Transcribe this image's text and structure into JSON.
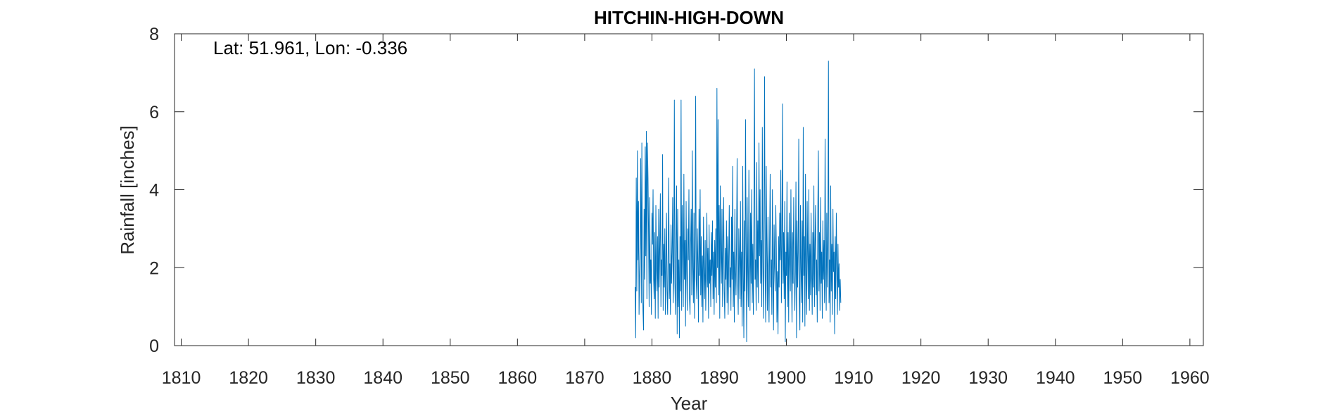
{
  "chart_data": {
    "type": "line",
    "title": "HITCHIN-HIGH-DOWN",
    "xlabel": "Year",
    "ylabel": "Rainfall [inches]",
    "annotation": "Lat: 51.961, Lon: -0.336",
    "xlim": [
      1809,
      1962
    ],
    "ylim": [
      0,
      8
    ],
    "xticks": [
      1810,
      1820,
      1830,
      1840,
      1850,
      1860,
      1870,
      1880,
      1890,
      1900,
      1910,
      1920,
      1930,
      1940,
      1950,
      1960
    ],
    "yticks": [
      0,
      2,
      4,
      6,
      8
    ],
    "grid": false,
    "series": [
      {
        "name": "",
        "color": "#0072BD",
        "x_start": 1877.5,
        "x_step": 0.0833333,
        "values": [
          1.5,
          0.2,
          4.3,
          1.4,
          5.0,
          2.2,
          3.7,
          0.8,
          1.9,
          2.6,
          4.8,
          1.1,
          5.2,
          2.0,
          0.9,
          0.4,
          3.5,
          1.7,
          5.1,
          2.3,
          5.5,
          1.2,
          5.2,
          4.3,
          2.8,
          1.0,
          3.8,
          1.6,
          2.2,
          0.8,
          3.4,
          2.6,
          4.0,
          1.7,
          1.2,
          2.9,
          0.7,
          3.6,
          2.0,
          1.4,
          2.8,
          0.7,
          3.5,
          1.5,
          2.6,
          3.9,
          1.0,
          2.2,
          1.8,
          4.9,
          0.9,
          2.6,
          1.5,
          3.0,
          0.8,
          2.2,
          3.4,
          1.4,
          0.8,
          2.5,
          4.3,
          1.2,
          2.1,
          0.8,
          3.1,
          1.6,
          2.4,
          3.8,
          1.1,
          2.0,
          6.3,
          1.6,
          0.8,
          2.8,
          4.1,
          0.3,
          3.5,
          1.0,
          2.2,
          0.2,
          2.8,
          1.4,
          6.3,
          0.9,
          3.6,
          2.4,
          1.0,
          4.4,
          1.7,
          2.7,
          0.5,
          3.7,
          1.9,
          0.9,
          3.0,
          2.2,
          4.0,
          1.2,
          0.8,
          2.6,
          3.5,
          1.3,
          5.0,
          2.0,
          1.1,
          3.4,
          0.7,
          2.4,
          6.4,
          1.7,
          1.2,
          3.0,
          2.1,
          0.6,
          3.5,
          1.8,
          4.0,
          1.3,
          2.8,
          1.0,
          2.3,
          0.6,
          3.3,
          1.9,
          1.2,
          2.7,
          0.9,
          2.0,
          3.4,
          1.5,
          2.5,
          0.7,
          3.1,
          1.6,
          2.2,
          1.0,
          2.9,
          1.8,
          3.2,
          1.2,
          2.4,
          0.8,
          2.7,
          1.5,
          3.0,
          1.1,
          6.6,
          2.0,
          5.8,
          1.3,
          3.6,
          0.7,
          4.1,
          2.3,
          1.6,
          3.5,
          1.0,
          2.6,
          3.8,
          1.4,
          0.7,
          2.5,
          1.7,
          3.2,
          1.1,
          2.8,
          0.8,
          2.2,
          3.6,
          1.5,
          2.0,
          0.9,
          3.3,
          1.7,
          4.6,
          1.0,
          2.4,
          0.6,
          3.5,
          1.9,
          1.3,
          2.7,
          4.8,
          1.6,
          0.8,
          3.0,
          2.2,
          1.2,
          3.7,
          1.0,
          2.4,
          0.5,
          4.6,
          1.8,
          0.2,
          3.2,
          1.4,
          5.8,
          2.6,
          0.1,
          3.8,
          1.9,
          1.0,
          4.5,
          2.3,
          0.9,
          3.4,
          1.6,
          4.0,
          1.1,
          2.6,
          0.8,
          3.5,
          7.1,
          1.7,
          2.2,
          0.9,
          4.7,
          1.5,
          3.2,
          1.1,
          5.2,
          2.3,
          4.0,
          1.6,
          2.7,
          1.0,
          5.6,
          2.2,
          0.7,
          3.3,
          6.9,
          1.8,
          0.6,
          4.6,
          2.4,
          0.9,
          3.3,
          1.6,
          0.6,
          2.7,
          4.4,
          1.5,
          2.2,
          0.8,
          4.0,
          1.7,
          0.4,
          3.1,
          2.0,
          1.4,
          3.6,
          2.5,
          0.6,
          1.9,
          0.3,
          2.8,
          1.5,
          3.4,
          2.2,
          4.5,
          1.1,
          2.6,
          6.2,
          1.6,
          2.9,
          1.2,
          3.7,
          0.1,
          2.4,
          1.8,
          4.2,
          1.0,
          2.9,
          0.6,
          3.4,
          2.1,
          1.4,
          4.0,
          1.9,
          0.6,
          2.9,
          1.6,
          3.8,
          2.2,
          0.9,
          1.9,
          4.2,
          0.2,
          3.2,
          1.5,
          2.4,
          5.3,
          1.2,
          0.4,
          3.6,
          2.0,
          1.1,
          3.2,
          0.6,
          5.6,
          1.8,
          2.8,
          0.5,
          4.4,
          1.6,
          0.8,
          3.7,
          2.3,
          1.2,
          4.0,
          0.9,
          2.6,
          1.3,
          3.4,
          1.9,
          0.8,
          2.9,
          1.5,
          4.1,
          1.0,
          2.6,
          3.6,
          1.3,
          2.2,
          0.6,
          3.4,
          5.0,
          1.4,
          2.9,
          0.9,
          3.8,
          1.6,
          2.4,
          0.7,
          3.2,
          1.7,
          2.7,
          1.1,
          5.3,
          2.0,
          0.9,
          3.4,
          1.5,
          2.8,
          7.3,
          1.1,
          2.2,
          0.6,
          4.1,
          1.4,
          2.6,
          0.8,
          3.5,
          1.9,
          2.4,
          0.3,
          2.8,
          1.2,
          3.4,
          2.0,
          0.8,
          2.6,
          1.5,
          2.1,
          0.9,
          1.7,
          1.1
        ]
      }
    ]
  }
}
